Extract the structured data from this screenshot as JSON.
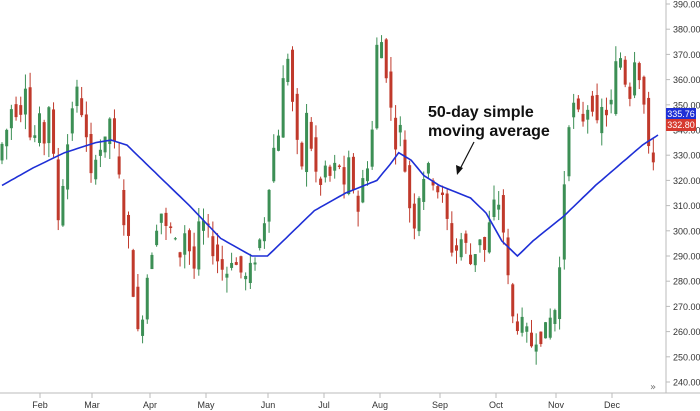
{
  "chart_data": {
    "type": "candlestick",
    "annotation": {
      "line1": "50-day simple",
      "line2": "moving average"
    },
    "x_tick_labels": [
      "Feb",
      "Mar",
      "Apr",
      "May",
      "Jun",
      "Jul",
      "Aug",
      "Sep",
      "Oct",
      "Nov",
      "Dec"
    ],
    "y_tick_labels": [
      "240.00",
      "250.00",
      "260.00",
      "270.00",
      "280.00",
      "290.00",
      "300.00",
      "310.00",
      "320.00",
      "330.00",
      "340.00",
      "350.00",
      "360.00",
      "370.00",
      "380.00",
      "390.00"
    ],
    "ylim": [
      240,
      390
    ],
    "grid": false,
    "last_price_tags": {
      "moving_average": "335.76",
      "last_close": "332.80"
    },
    "colors": {
      "up": "#3c8f55",
      "down": "#c0392b",
      "moving_average": "#1e2fd6",
      "axis": "#bbbbbb",
      "text": "#333333"
    },
    "price_path": [
      [
        0,
        328
      ],
      [
        6,
        340
      ],
      [
        10,
        352
      ],
      [
        14,
        345
      ],
      [
        18,
        360
      ],
      [
        22,
        330
      ],
      [
        26,
        345
      ],
      [
        30,
        336
      ],
      [
        34,
        355
      ],
      [
        38,
        300
      ],
      [
        40,
        310
      ],
      [
        44,
        330
      ],
      [
        48,
        350
      ],
      [
        52,
        356
      ],
      [
        56,
        340
      ],
      [
        60,
        320
      ],
      [
        64,
        336
      ],
      [
        68,
        330
      ],
      [
        72,
        345
      ],
      [
        78,
        320
      ],
      [
        82,
        300
      ],
      [
        86,
        290
      ],
      [
        88,
        265
      ],
      [
        91,
        255
      ],
      [
        94,
        275
      ],
      [
        98,
        290
      ],
      [
        104,
        310
      ],
      [
        108,
        300
      ],
      [
        112,
        300
      ],
      [
        116,
        288
      ],
      [
        120,
        300
      ],
      [
        126,
        285
      ],
      [
        130,
        305
      ],
      [
        134,
        300
      ],
      [
        140,
        290
      ],
      [
        144,
        285
      ],
      [
        146,
        282
      ],
      [
        150,
        290
      ],
      [
        154,
        285
      ],
      [
        160,
        280
      ],
      [
        164,
        288
      ],
      [
        170,
        300
      ],
      [
        176,
        330
      ],
      [
        180,
        340
      ],
      [
        184,
        365
      ],
      [
        186,
        370
      ],
      [
        190,
        345
      ],
      [
        194,
        320
      ],
      [
        198,
        345
      ],
      [
        202,
        330
      ],
      [
        206,
        315
      ],
      [
        210,
        325
      ],
      [
        214,
        320
      ],
      [
        218,
        330
      ],
      [
        222,
        315
      ],
      [
        226,
        330
      ],
      [
        230,
        305
      ],
      [
        234,
        320
      ],
      [
        238,
        330
      ],
      [
        240,
        340
      ],
      [
        242,
        365
      ],
      [
        244,
        380
      ],
      [
        246,
        375
      ],
      [
        250,
        360
      ],
      [
        254,
        335
      ],
      [
        258,
        340
      ],
      [
        262,
        320
      ],
      [
        266,
        300
      ],
      [
        270,
        315
      ],
      [
        274,
        325
      ],
      [
        280,
        320
      ],
      [
        286,
        310
      ],
      [
        292,
        290
      ],
      [
        298,
        298
      ],
      [
        304,
        285
      ],
      [
        308,
        300
      ],
      [
        312,
        292
      ],
      [
        316,
        305
      ],
      [
        320,
        315
      ],
      [
        324,
        300
      ],
      [
        326,
        285
      ],
      [
        330,
        265
      ],
      [
        336,
        262
      ],
      [
        342,
        255
      ],
      [
        346,
        260
      ],
      [
        350,
        258
      ],
      [
        354,
        265
      ],
      [
        358,
        270
      ],
      [
        362,
        300
      ],
      [
        364,
        340
      ],
      [
        368,
        350
      ],
      [
        372,
        345
      ],
      [
        376,
        345
      ],
      [
        380,
        355
      ],
      [
        384,
        340
      ],
      [
        388,
        350
      ],
      [
        392,
        345
      ],
      [
        396,
        365
      ],
      [
        398,
        372
      ],
      [
        402,
        360
      ],
      [
        404,
        350
      ],
      [
        408,
        370
      ],
      [
        412,
        360
      ],
      [
        416,
        340
      ],
      [
        418,
        320
      ],
      [
        420,
        330
      ]
    ],
    "moving_average_path": [
      [
        0,
        318
      ],
      [
        20,
        325
      ],
      [
        40,
        331
      ],
      [
        60,
        335
      ],
      [
        70,
        336
      ],
      [
        80,
        334
      ],
      [
        100,
        322
      ],
      [
        120,
        310
      ],
      [
        140,
        297
      ],
      [
        160,
        290
      ],
      [
        170,
        290
      ],
      [
        180,
        296
      ],
      [
        200,
        308
      ],
      [
        220,
        315
      ],
      [
        240,
        320
      ],
      [
        248,
        326
      ],
      [
        254,
        331
      ],
      [
        262,
        328
      ],
      [
        270,
        322
      ],
      [
        280,
        318
      ],
      [
        300,
        313
      ],
      [
        310,
        307
      ],
      [
        320,
        296
      ],
      [
        330,
        290
      ],
      [
        340,
        296
      ],
      [
        360,
        306
      ],
      [
        380,
        318
      ],
      [
        395,
        326
      ],
      [
        410,
        334
      ],
      [
        420,
        338
      ]
    ]
  }
}
